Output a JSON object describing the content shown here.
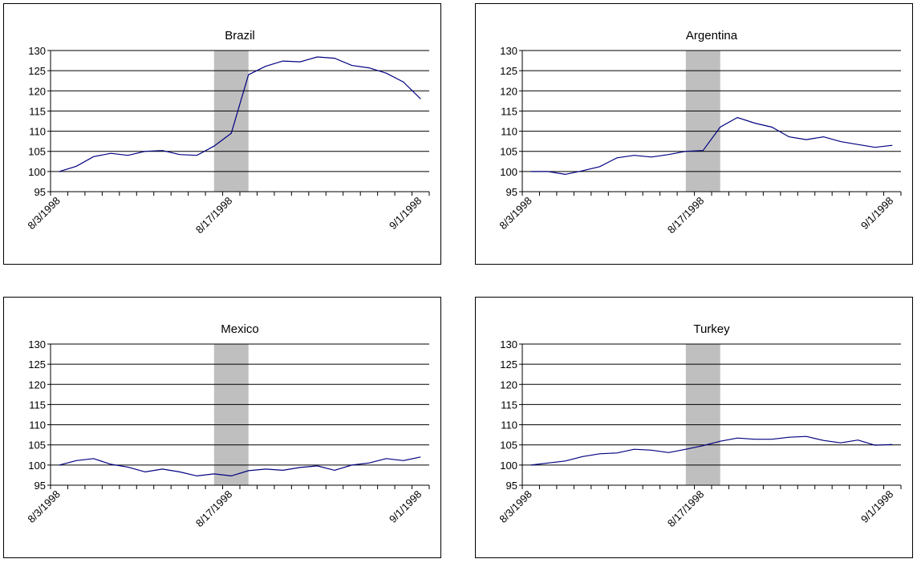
{
  "colors": {
    "line": "#000080",
    "shade": "#bfbfbf",
    "grid": "#000000",
    "frame": "#000000",
    "background": "#ffffff"
  },
  "chart_data": [
    {
      "type": "line",
      "title": "Brazil",
      "x": [
        "8/3/1998",
        "8/4/1998",
        "8/5/1998",
        "8/6/1998",
        "8/7/1998",
        "8/10/1998",
        "8/11/1998",
        "8/12/1998",
        "8/13/1998",
        "8/14/1998",
        "8/17/1998",
        "8/18/1998",
        "8/19/1998",
        "8/20/1998",
        "8/21/1998",
        "8/24/1998",
        "8/25/1998",
        "8/26/1998",
        "8/27/1998",
        "8/28/1998",
        "8/31/1998",
        "9/1/1998"
      ],
      "x_tick_labels": [
        "8/3/1998",
        "8/17/1998",
        "9/1/1998"
      ],
      "y_ticks": [
        95,
        100,
        105,
        110,
        115,
        120,
        125,
        130
      ],
      "ylim": [
        95,
        130
      ],
      "grid": true,
      "shaded_range": [
        "8/14/1998",
        "8/18/1998"
      ],
      "series": [
        {
          "values": [
            100,
            101.3,
            103.7,
            104.5,
            104,
            105,
            105.2,
            104.2,
            104,
            106.3,
            109.5,
            124,
            126.1,
            127.4,
            127.2,
            128.4,
            128.1,
            126.3,
            125.7,
            124.4,
            122.2,
            118
          ]
        }
      ]
    },
    {
      "type": "line",
      "title": "Argentina",
      "x": [
        "8/3/1998",
        "8/4/1998",
        "8/5/1998",
        "8/6/1998",
        "8/7/1998",
        "8/10/1998",
        "8/11/1998",
        "8/12/1998",
        "8/13/1998",
        "8/14/1998",
        "8/17/1998",
        "8/18/1998",
        "8/19/1998",
        "8/20/1998",
        "8/21/1998",
        "8/24/1998",
        "8/25/1998",
        "8/26/1998",
        "8/27/1998",
        "8/28/1998",
        "8/31/1998",
        "9/1/1998"
      ],
      "x_tick_labels": [
        "8/3/1998",
        "8/17/1998",
        "9/1/1998"
      ],
      "y_ticks": [
        95,
        100,
        105,
        110,
        115,
        120,
        125,
        130
      ],
      "ylim": [
        95,
        130
      ],
      "grid": true,
      "shaded_range": [
        "8/14/1998",
        "8/18/1998"
      ],
      "series": [
        {
          "values": [
            100,
            100,
            99.3,
            100.2,
            101.2,
            103.4,
            104,
            103.6,
            104.2,
            105,
            105.2,
            111,
            113.4,
            112,
            111,
            108.6,
            107.9,
            108.6,
            107.4,
            106.7,
            106,
            106.5
          ]
        }
      ]
    },
    {
      "type": "line",
      "title": "Mexico",
      "x": [
        "8/3/1998",
        "8/4/1998",
        "8/5/1998",
        "8/6/1998",
        "8/7/1998",
        "8/10/1998",
        "8/11/1998",
        "8/12/1998",
        "8/13/1998",
        "8/14/1998",
        "8/17/1998",
        "8/18/1998",
        "8/19/1998",
        "8/20/1998",
        "8/21/1998",
        "8/24/1998",
        "8/25/1998",
        "8/26/1998",
        "8/27/1998",
        "8/28/1998",
        "8/31/1998",
        "9/1/1998"
      ],
      "x_tick_labels": [
        "8/3/1998",
        "8/17/1998",
        "9/1/1998"
      ],
      "y_ticks": [
        95,
        100,
        105,
        110,
        115,
        120,
        125,
        130
      ],
      "ylim": [
        95,
        130
      ],
      "grid": true,
      "shaded_range": [
        "8/14/1998",
        "8/18/1998"
      ],
      "series": [
        {
          "values": [
            100,
            101.1,
            101.6,
            100.2,
            99.5,
            98.3,
            99,
            98.3,
            97.3,
            97.8,
            97.3,
            98.6,
            99,
            98.7,
            99.4,
            99.8,
            98.7,
            100,
            100.5,
            101.6,
            101.1,
            102
          ]
        }
      ]
    },
    {
      "type": "line",
      "title": "Turkey",
      "x": [
        "8/3/1998",
        "8/4/1998",
        "8/5/1998",
        "8/6/1998",
        "8/7/1998",
        "8/10/1998",
        "8/11/1998",
        "8/12/1998",
        "8/13/1998",
        "8/14/1998",
        "8/17/1998",
        "8/18/1998",
        "8/19/1998",
        "8/20/1998",
        "8/21/1998",
        "8/24/1998",
        "8/25/1998",
        "8/26/1998",
        "8/27/1998",
        "8/28/1998",
        "8/31/1998",
        "9/1/1998"
      ],
      "x_tick_labels": [
        "8/3/1998",
        "8/17/1998",
        "9/1/1998"
      ],
      "y_ticks": [
        95,
        100,
        105,
        110,
        115,
        120,
        125,
        130
      ],
      "ylim": [
        95,
        130
      ],
      "grid": true,
      "shaded_range": [
        "8/14/1998",
        "8/18/1998"
      ],
      "series": [
        {
          "values": [
            100,
            100.5,
            101,
            102.1,
            102.8,
            103,
            103.9,
            103.7,
            103.1,
            103.9,
            104.8,
            105.9,
            106.7,
            106.4,
            106.4,
            106.9,
            107.1,
            106.1,
            105.5,
            106.2,
            104.9,
            105.1
          ]
        }
      ]
    }
  ]
}
